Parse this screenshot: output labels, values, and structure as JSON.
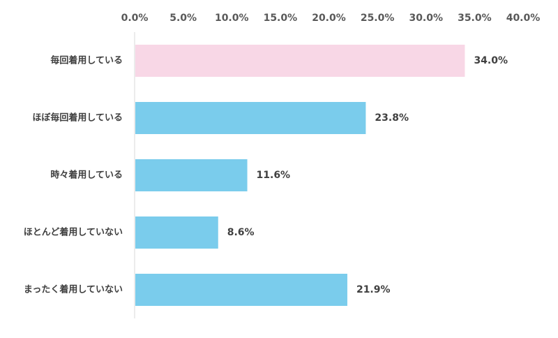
{
  "chart_data": {
    "type": "bar",
    "orientation": "horizontal",
    "categories": [
      "毎回着用している",
      "ほぼ毎回着用している",
      "時々着用している",
      "ほとんど着用していない",
      "まったく着用していない"
    ],
    "values": [
      34.0,
      23.8,
      11.6,
      8.6,
      21.9
    ],
    "value_labels": [
      "34.0%",
      "23.8%",
      "11.6%",
      "8.6%",
      "21.9%"
    ],
    "bar_colors": [
      "#f8d7e6",
      "#7accec",
      "#7accec",
      "#7accec",
      "#7accec"
    ],
    "xlim": [
      0,
      40
    ],
    "xticks": [
      0,
      5,
      10,
      15,
      20,
      25,
      30,
      35,
      40
    ],
    "xtick_labels": [
      "0.0%",
      "5.0%",
      "10.0%",
      "15.0%",
      "20.0%",
      "25.0%",
      "30.0%",
      "35.0%",
      "40.0%"
    ],
    "axis_position": "top",
    "grid": false,
    "legend": "none",
    "title": "",
    "xlabel": "",
    "ylabel": ""
  }
}
